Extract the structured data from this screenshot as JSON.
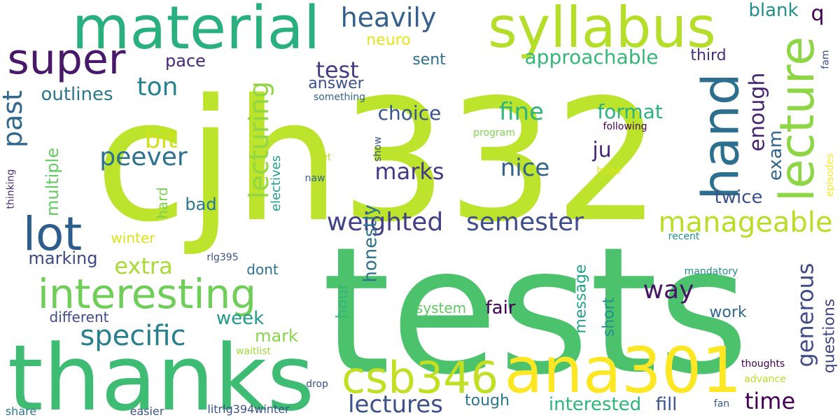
{
  "words": [
    {
      "text": "tests",
      "color": "#4cc26c"
    },
    {
      "text": "cjh332",
      "color": "#bde42c"
    },
    {
      "text": "thanks",
      "color": "#3fbc73"
    },
    {
      "text": "material",
      "color": "#2aaf7f"
    },
    {
      "text": "syllabus",
      "color": "#b5de2b"
    },
    {
      "text": "ana301",
      "color": "#fde725"
    },
    {
      "text": "super",
      "color": "#48186a"
    },
    {
      "text": "interesting",
      "color": "#6ece58"
    },
    {
      "text": "csb346",
      "color": "#c2df23"
    },
    {
      "text": "lot",
      "color": "#2d5d8c"
    },
    {
      "text": "hand",
      "color": "#2d6f8e"
    },
    {
      "text": "lecture",
      "color": "#8ed645"
    },
    {
      "text": "heavily",
      "color": "#355f8d"
    },
    {
      "text": "specific",
      "color": "#277f8e"
    },
    {
      "text": "semester",
      "color": "#3d4e8a"
    },
    {
      "text": "weighted",
      "color": "#424086"
    },
    {
      "text": "manageable",
      "color": "#b8de29"
    },
    {
      "text": "lectures",
      "color": "#3b528b"
    },
    {
      "text": "way",
      "color": "#471365"
    },
    {
      "text": "marks",
      "color": "#443a83"
    },
    {
      "text": "nice",
      "color": "#33638d"
    },
    {
      "text": "fine",
      "color": "#2fb47c"
    },
    {
      "text": "test",
      "color": "#433e85"
    },
    {
      "text": "ton",
      "color": "#26828e"
    },
    {
      "text": "past",
      "color": "#31688e"
    },
    {
      "text": "peever",
      "color": "#2c728e"
    },
    {
      "text": "bit",
      "color": "#d0e11c"
    },
    {
      "text": "lecturing",
      "color": "#90d743"
    },
    {
      "text": "generous",
      "color": "#3e4c8a"
    },
    {
      "text": "time",
      "color": "#440154"
    },
    {
      "text": "enough",
      "color": "#482475"
    },
    {
      "text": "exam",
      "color": "#32658e"
    },
    {
      "text": "ju",
      "color": "#482878"
    },
    {
      "text": "extra",
      "color": "#a8db34"
    },
    {
      "text": "marking",
      "color": "#3f4889"
    },
    {
      "text": "q",
      "color": "#440154"
    },
    {
      "text": "blank",
      "color": "#21918c"
    },
    {
      "text": "approachable",
      "color": "#35b779"
    },
    {
      "text": "choice",
      "color": "#39568c"
    },
    {
      "text": "format",
      "color": "#2db27d"
    },
    {
      "text": "outlines",
      "color": "#2a768e"
    },
    {
      "text": "twice",
      "color": "#3b528b"
    },
    {
      "text": "multiple",
      "color": "#63cb5f"
    },
    {
      "text": "honestly",
      "color": "#2c728e"
    },
    {
      "text": "mark",
      "color": "#89d548"
    },
    {
      "text": "week",
      "color": "#1f9a8a"
    },
    {
      "text": "interested",
      "color": "#2fb47c"
    },
    {
      "text": "fill",
      "color": "#3a548c"
    },
    {
      "text": "tough",
      "color": "#2a768e"
    },
    {
      "text": "questions",
      "color": "#404588"
    },
    {
      "text": "fair",
      "color": "#440154"
    },
    {
      "text": "message",
      "color": "#20a486"
    },
    {
      "text": "short",
      "color": "#21918c"
    },
    {
      "text": "hour",
      "color": "#35b779"
    },
    {
      "text": "bad",
      "color": "#2a778e"
    },
    {
      "text": "pace",
      "color": "#482979"
    },
    {
      "text": "sent",
      "color": "#2d708e"
    },
    {
      "text": "neuro",
      "color": "#e5e419"
    },
    {
      "text": "answer",
      "color": "#3b528b"
    },
    {
      "text": "third",
      "color": "#46327e"
    },
    {
      "text": "work",
      "color": "#31688e"
    },
    {
      "text": "different",
      "color": "#3e4a89"
    },
    {
      "text": "dont",
      "color": "#2c728e"
    },
    {
      "text": "system",
      "color": "#5ec962"
    },
    {
      "text": "hard",
      "color": "#7ad151"
    },
    {
      "text": "winter",
      "color": "#dde318"
    },
    {
      "text": "electives",
      "color": "#1f9e89"
    },
    {
      "text": "something",
      "color": "#33638d"
    },
    {
      "text": "program",
      "color": "#7fd34e"
    },
    {
      "text": "following",
      "color": "#440154"
    },
    {
      "text": "show",
      "color": "#3b528b"
    },
    {
      "text": "yet",
      "color": "#c0df25"
    },
    {
      "text": "naw",
      "color": "#33638d"
    },
    {
      "text": "huge",
      "color": "#dde318"
    },
    {
      "text": "episodes",
      "color": "#fde725"
    },
    {
      "text": "fam",
      "color": "#3e4c8a"
    },
    {
      "text": "thinking",
      "color": "#472d7b"
    },
    {
      "text": "recent",
      "color": "#21918c"
    },
    {
      "text": "mandatory",
      "color": "#23898e"
    },
    {
      "text": "rlg395",
      "color": "#3b528b"
    },
    {
      "text": "waitlist",
      "color": "#a0da39"
    },
    {
      "text": "thoughts",
      "color": "#440154"
    },
    {
      "text": "advance",
      "color": "#bade28"
    },
    {
      "text": "drop",
      "color": "#3b528b"
    },
    {
      "text": "fan",
      "color": "#38598c"
    },
    {
      "text": "share",
      "color": "#2a788e"
    },
    {
      "text": "easier",
      "color": "#3b528b"
    },
    {
      "text": "litrlg394winter",
      "color": "#3b528b"
    }
  ]
}
